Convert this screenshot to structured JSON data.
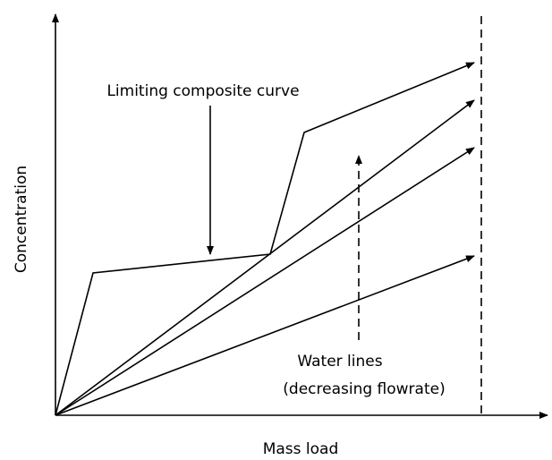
{
  "axes": {
    "x_label": "Mass load",
    "y_label": "Concentration"
  },
  "annotations": {
    "composite_curve": "Limiting composite curve",
    "water_lines": "Water lines",
    "water_lines_note": "(decreasing flowrate)"
  }
}
